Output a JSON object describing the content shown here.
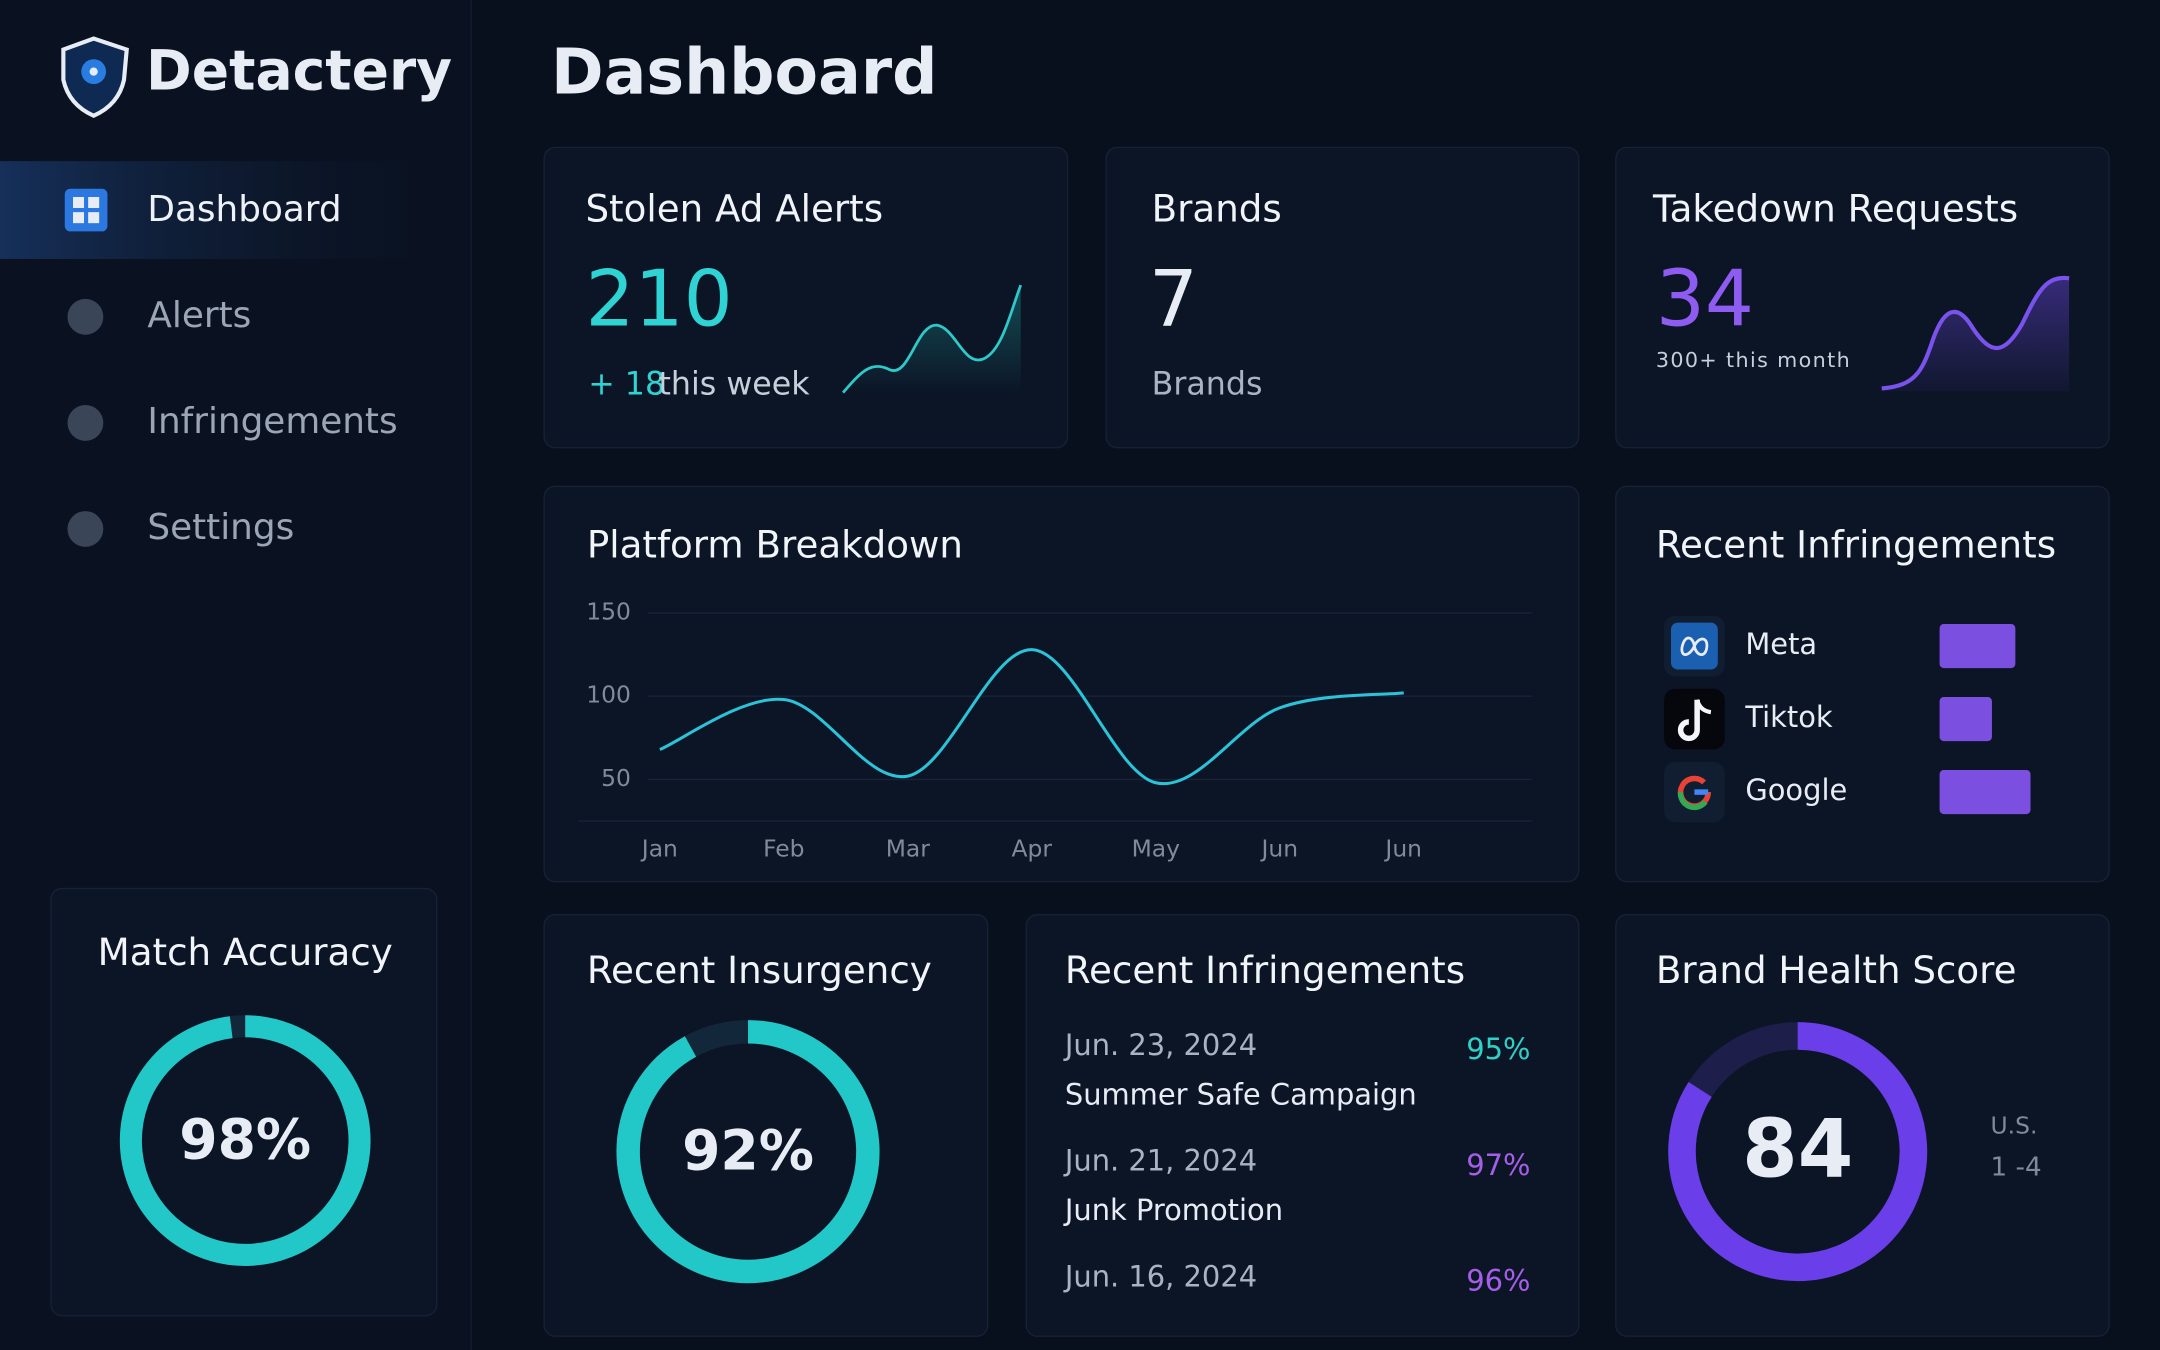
{
  "brand": "Detactery",
  "page_title": "Dashboard",
  "nav": [
    {
      "label": "Dashboard",
      "active": true
    },
    {
      "label": "Alerts",
      "active": false
    },
    {
      "label": "Infringements",
      "active": false
    },
    {
      "label": "Settings",
      "active": false
    }
  ],
  "stat_cards": [
    {
      "title": "Stolen Ad Alerts",
      "value": 210,
      "delta": "+ 18",
      "note": "this week"
    },
    {
      "title": "Brands",
      "value": 7,
      "note": "Brands"
    },
    {
      "title": "Takedown Requests",
      "value": 34,
      "note": "300+ this month"
    }
  ],
  "chart_data": {
    "type": "line",
    "title": "Platform Breakdown",
    "categories": [
      "Jan",
      "Feb",
      "Mar",
      "Apr",
      "May",
      "Jun",
      "Jun"
    ],
    "values": [
      68,
      98,
      52,
      128,
      48,
      93,
      102
    ],
    "color": "#2cc3d8",
    "ylim": [
      25,
      150
    ],
    "yticks": [
      50,
      100,
      150
    ],
    "grid": true
  },
  "recent_platforms": {
    "type": "bar",
    "title": "Recent Infringements",
    "categories": [
      "Meta",
      "Tiktok",
      "Google"
    ],
    "values": [
      55,
      38,
      66
    ],
    "xlim": [
      0,
      100
    ],
    "color": "#7b4fe0"
  },
  "match_accuracy": {
    "title": "Match Accuracy",
    "value": 98,
    "value_label": "98%",
    "ylim": [
      0,
      100
    ],
    "color": "#22c8c8"
  },
  "recent_insurgency": {
    "title": "Recent Insurgency",
    "value": 92,
    "value_label": "92%",
    "ylim": [
      0,
      100
    ],
    "color": "#22c8c8"
  },
  "recent_list": {
    "title": "Recent Infringements",
    "items": [
      {
        "date": "Jun. 23, 2024",
        "name": "Summer Safe Campaign",
        "score": "95%",
        "color": "#2fd0c8"
      },
      {
        "date": "Jun. 21, 2024",
        "name": "Junk Promotion",
        "score": "97%",
        "color": "#a45ee8"
      },
      {
        "date": "Jun. 16, 2024",
        "score": "96%",
        "color": "#a45ee8"
      }
    ]
  },
  "brand_health": {
    "title": "Brand Health Score",
    "value": 84,
    "ylim": [
      0,
      100
    ],
    "color": "#6a3ee8",
    "region": "U.S.",
    "range_note": "1 -4"
  }
}
